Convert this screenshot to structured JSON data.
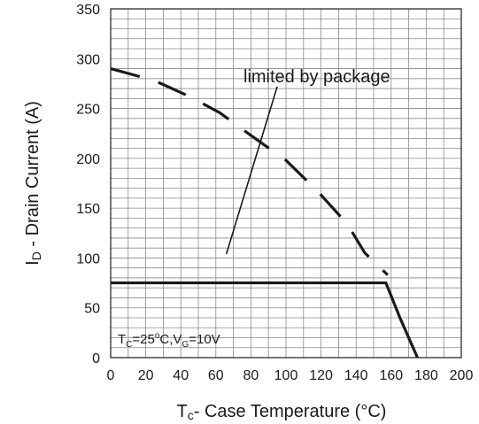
{
  "chart_data": {
    "type": "line",
    "xlabel": {
      "main": "T",
      "sub": "c",
      "rest": "- Case Temperature (°C)"
    },
    "ylabel": {
      "main": "I",
      "sub": "D",
      "rest": " - Drain Current (A)"
    },
    "xlim": [
      0,
      200
    ],
    "ylim": [
      0,
      350
    ],
    "xticks": [
      "0",
      "20",
      "40",
      "60",
      "80",
      "100",
      "120",
      "140",
      "160",
      "180",
      "200"
    ],
    "yticks": [
      "0",
      "50",
      "100",
      "150",
      "200",
      "250",
      "300",
      "350"
    ],
    "grid": true,
    "annotation": "limited by package",
    "condition": {
      "t": "T",
      "t_sub": "C",
      "eq1": "=25",
      "deg": "o",
      "c": "C,V",
      "v_sub": "G",
      "eq2": "=10V"
    },
    "series": [
      {
        "role": "silicon-limit",
        "style": "dashed",
        "x": [
          0,
          25,
          45,
          62,
          80,
          100,
          118,
          135,
          145,
          158
        ],
        "y": [
          290,
          278,
          262,
          246,
          223,
          198,
          167,
          134,
          105,
          83
        ]
      },
      {
        "role": "package-limit",
        "style": "solid",
        "x": [
          0,
          157,
          165,
          175
        ],
        "y": [
          75,
          75,
          40,
          0
        ]
      },
      {
        "role": "annotation-pointer",
        "style": "solid",
        "x": [
          66,
          95
        ],
        "y": [
          104,
          272
        ]
      }
    ]
  }
}
